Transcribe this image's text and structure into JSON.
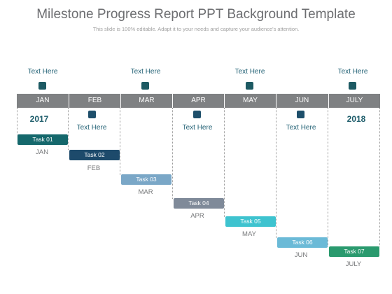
{
  "header": {
    "title": "Milestone Progress Report PPT Background Template",
    "subtitle": "This slide is 100% editable. Adapt it to your needs and capture your audience's attention."
  },
  "months": [
    "JAN",
    "FEB",
    "MAR",
    "APR",
    "MAY",
    "JUN",
    "JULY"
  ],
  "top_notes": [
    "Text Here",
    "Text Here",
    "Text Here",
    "Text Here"
  ],
  "mid_notes": [
    "Text Here",
    "Text Here",
    "Text Here"
  ],
  "years": {
    "start": "2017",
    "end": "2018"
  },
  "tasks": [
    {
      "label": "Task 01",
      "month": "JAN",
      "color": "#15686c"
    },
    {
      "label": "Task 02",
      "month": "FEB",
      "color": "#1d4a6b"
    },
    {
      "label": "Task 03",
      "month": "MAR",
      "color": "#7aa7c7"
    },
    {
      "label": "Task 04",
      "month": "APR",
      "color": "#7f8a99"
    },
    {
      "label": "Task 05",
      "month": "MAY",
      "color": "#3ec3cf"
    },
    {
      "label": "Task 06",
      "month": "JUN",
      "color": "#6bbad7"
    },
    {
      "label": "Task 07",
      "month": "JULY",
      "color": "#2a9a6e"
    }
  ],
  "colors": {
    "timeline_bar": "#7f8183",
    "marker": "#1d5a63",
    "note_text": "#1f5f73"
  }
}
